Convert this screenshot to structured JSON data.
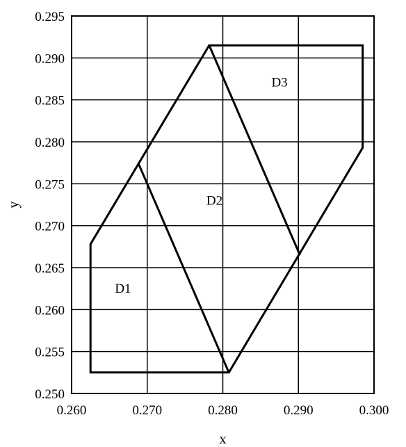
{
  "chart_data": {
    "type": "line",
    "title": "",
    "xlabel": "x",
    "ylabel": "y",
    "xlim": [
      0.26,
      0.3
    ],
    "ylim": [
      0.25,
      0.295
    ],
    "grid": true,
    "x_ticks": [
      {
        "value": 0.26,
        "label": "0.260"
      },
      {
        "value": 0.27,
        "label": "0.270"
      },
      {
        "value": 0.28,
        "label": "0.280"
      },
      {
        "value": 0.29,
        "label": "0.290"
      },
      {
        "value": 0.3,
        "label": "0.300"
      }
    ],
    "y_ticks": [
      {
        "value": 0.25,
        "label": "0.250"
      },
      {
        "value": 0.255,
        "label": "0.255"
      },
      {
        "value": 0.26,
        "label": "0.260"
      },
      {
        "value": 0.265,
        "label": "0.265"
      },
      {
        "value": 0.27,
        "label": "0.270"
      },
      {
        "value": 0.275,
        "label": "0.275"
      },
      {
        "value": 0.28,
        "label": "0.280"
      },
      {
        "value": 0.285,
        "label": "0.285"
      },
      {
        "value": 0.29,
        "label": "0.290"
      },
      {
        "value": 0.295,
        "label": "0.295"
      }
    ],
    "outline": [
      {
        "x": 0.2625,
        "y": 0.2525
      },
      {
        "x": 0.2808,
        "y": 0.2525
      },
      {
        "x": 0.2985,
        "y": 0.2793
      },
      {
        "x": 0.2985,
        "y": 0.2915
      },
      {
        "x": 0.2782,
        "y": 0.2915
      },
      {
        "x": 0.2625,
        "y": 0.2678
      }
    ],
    "dividers": [
      {
        "name": "D1-D2 boundary",
        "points": [
          {
            "x": 0.2688,
            "y": 0.2775
          },
          {
            "x": 0.2808,
            "y": 0.2525
          }
        ]
      },
      {
        "name": "D2-D3 boundary",
        "points": [
          {
            "x": 0.2782,
            "y": 0.2915
          },
          {
            "x": 0.2902,
            "y": 0.2665
          }
        ]
      }
    ],
    "region_labels": [
      {
        "text": "D1",
        "x": 0.2668,
        "y": 0.262
      },
      {
        "text": "D2",
        "x": 0.2789,
        "y": 0.2725
      },
      {
        "text": "D3",
        "x": 0.2875,
        "y": 0.2866
      }
    ]
  }
}
